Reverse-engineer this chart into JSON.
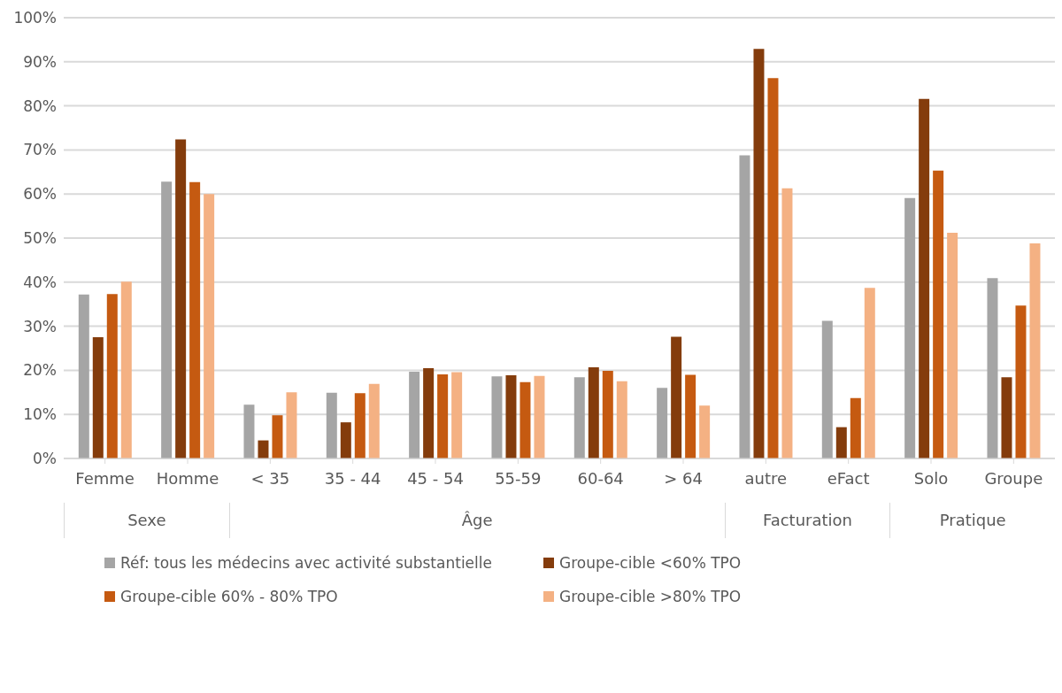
{
  "chart_data": {
    "type": "bar",
    "categories": [
      "Femme",
      "Homme",
      "< 35",
      "35 - 44",
      "45 - 54",
      "55-59",
      "60-64",
      "> 64",
      "autre",
      "eFact",
      "Solo",
      "Groupe"
    ],
    "annotations": [
      "Sexe",
      "Âge",
      "Facturation",
      "Pratique"
    ],
    "series": [
      {
        "name": "Réf: tous les médecins avec activité substantielle",
        "color": "#a5a5a5",
        "values": [
          37.2,
          62.8,
          12.2,
          14.9,
          19.7,
          18.6,
          18.4,
          16.0,
          68.8,
          31.2,
          59.1,
          40.9
        ]
      },
      {
        "name": "Groupe-cible <60% TPO",
        "color": "#843c0c",
        "values": [
          27.5,
          72.4,
          4.1,
          8.2,
          20.5,
          18.9,
          20.7,
          27.6,
          92.9,
          7.1,
          81.6,
          18.4
        ]
      },
      {
        "name": "Groupe-cible 60% - 80% TPO",
        "color": "#c55a11",
        "values": [
          37.3,
          62.7,
          9.8,
          14.8,
          19.1,
          17.3,
          19.9,
          19.0,
          86.3,
          13.7,
          65.3,
          34.7
        ]
      },
      {
        "name": "Groupe-cible >80% TPO",
        "color": "#f4b183",
        "values": [
          40.1,
          60.0,
          15.0,
          16.9,
          19.6,
          18.7,
          17.5,
          12.0,
          61.3,
          38.7,
          51.2,
          48.8
        ]
      }
    ],
    "ylim": [
      0,
      100
    ],
    "yticks": [
      {
        "value": 0,
        "label": "0%"
      },
      {
        "value": 10,
        "label": "10%"
      },
      {
        "value": 20,
        "label": "20%"
      },
      {
        "value": 30,
        "label": "30%"
      },
      {
        "value": 40,
        "label": "40%"
      },
      {
        "value": 50,
        "label": "50%"
      },
      {
        "value": 60,
        "label": "60%"
      },
      {
        "value": 70,
        "label": "70%"
      },
      {
        "value": 80,
        "label": "80%"
      },
      {
        "value": 90,
        "label": "90%"
      },
      {
        "value": 100,
        "label": "100%"
      }
    ],
    "grid": "y",
    "legend": "bottom"
  }
}
